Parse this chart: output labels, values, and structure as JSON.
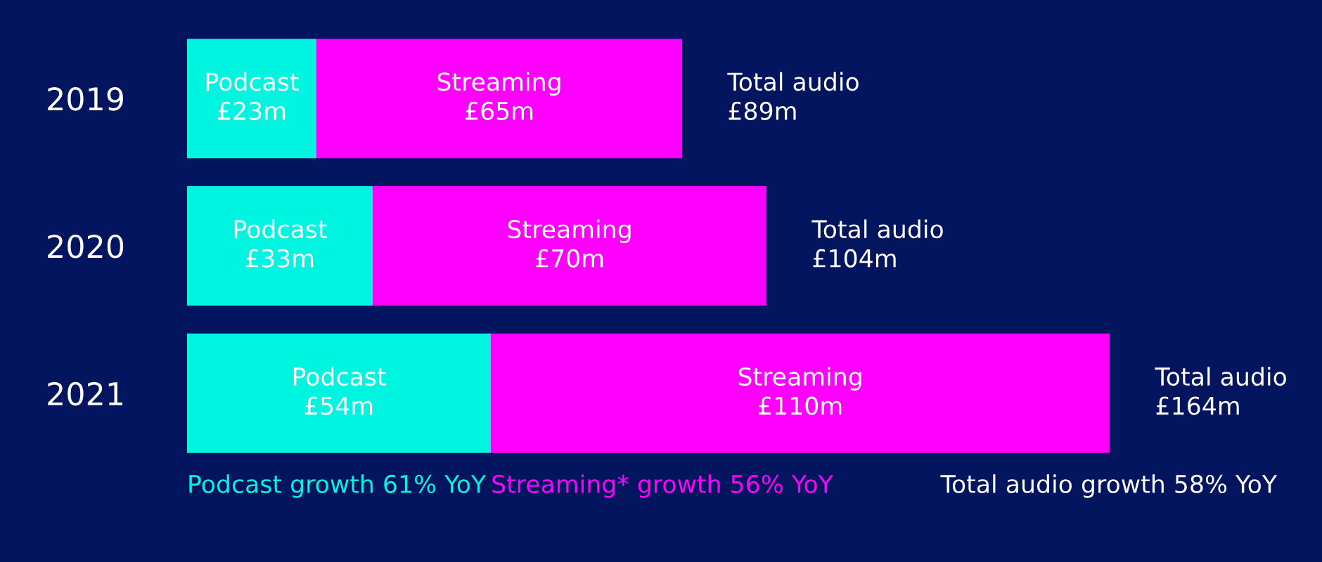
{
  "chart_data": {
    "type": "bar",
    "orientation": "horizontal",
    "stacked": true,
    "categories": [
      "2019",
      "2020",
      "2021"
    ],
    "series": [
      {
        "name": "Podcast",
        "color": "#00f5e1",
        "values": [
          23,
          33,
          54
        ],
        "value_labels": [
          "£23m",
          "£33m",
          "£54m"
        ]
      },
      {
        "name": "Streaming",
        "color": "#ff00ff",
        "values": [
          65,
          70,
          110
        ],
        "value_labels": [
          "£65m",
          "£70m",
          "£110m"
        ]
      }
    ],
    "totals": [
      "Total audio\n£89m",
      "Total audio\n£104m",
      "Total audio\n£164m"
    ],
    "annotations": [
      "Podcast growth 61% YoY",
      "Streaming* growth 56% YoY",
      "Total audio growth 58% YoY"
    ],
    "legend": false,
    "grid": false
  }
}
